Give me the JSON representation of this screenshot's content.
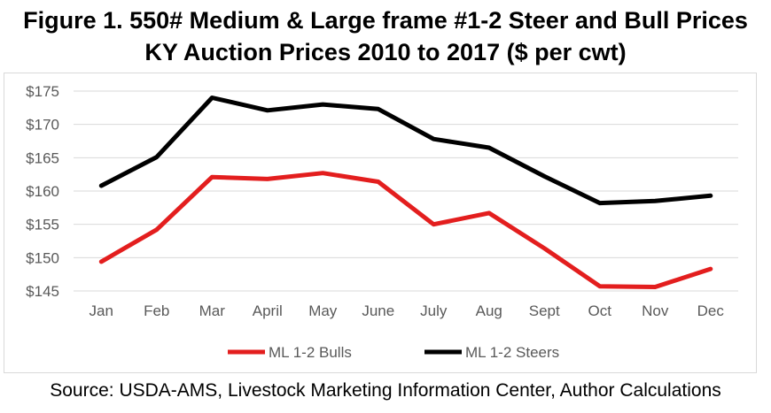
{
  "header": {
    "title_line1": "Figure 1. 550# Medium & Large frame #1-2 Steer and Bull Prices",
    "title_line2": "KY Auction Prices 2010 to 2017 ($ per cwt)"
  },
  "footer": {
    "source": "Source: USDA-AMS, Livestock Marketing Information Center, Author Calculations"
  },
  "chart_data": {
    "type": "line",
    "title": "",
    "xlabel": "",
    "ylabel": "",
    "categories": [
      "Jan",
      "Feb",
      "Mar",
      "April",
      "May",
      "June",
      "July",
      "Aug",
      "Sept",
      "Oct",
      "Nov",
      "Dec"
    ],
    "y_ticks": [
      "$145",
      "$150",
      "$155",
      "$160",
      "$165",
      "$170",
      "$175"
    ],
    "ylim": [
      145,
      175
    ],
    "grid": true,
    "legend_position": "bottom",
    "series": [
      {
        "name": "ML 1-2 Bulls",
        "color": "#e31e1e",
        "values": [
          149.4,
          154.2,
          162.1,
          161.8,
          162.7,
          161.4,
          155.0,
          156.7,
          151.4,
          145.7,
          145.6,
          148.3
        ]
      },
      {
        "name": "ML 1-2 Steers",
        "color": "#000000",
        "values": [
          160.8,
          165.1,
          174.0,
          172.1,
          173.0,
          172.3,
          167.8,
          166.5,
          162.2,
          158.2,
          158.5,
          159.3
        ]
      }
    ]
  }
}
